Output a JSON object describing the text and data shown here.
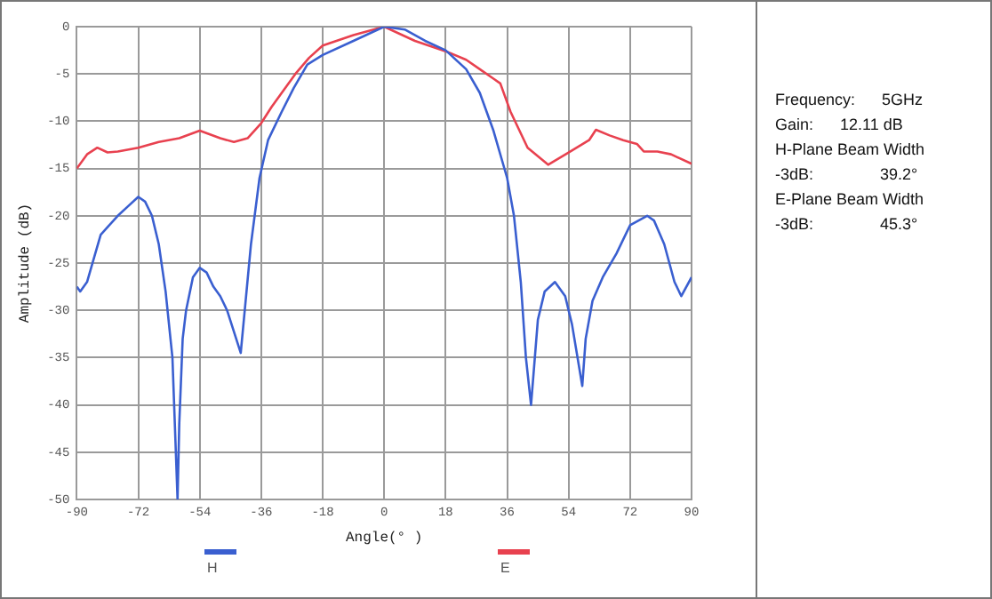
{
  "chart_data": {
    "type": "line",
    "xlabel": "Angle(° )",
    "ylabel": "Amplitude (dB)",
    "xlim": [
      -90,
      90
    ],
    "xticks": [
      -90,
      -72,
      -54,
      -36,
      -18,
      0,
      18,
      36,
      54,
      72,
      90
    ],
    "ylim": [
      -50,
      0
    ],
    "yticks": [
      -50,
      -45,
      -40,
      -35,
      -30,
      -25,
      -20,
      -15,
      -10,
      -5,
      0
    ],
    "grid": true,
    "legend": "bottom",
    "marker": "none",
    "line_style": "solid",
    "series": [
      {
        "name": "H",
        "color": "#3a5fd0",
        "x": [
          -90,
          -89,
          -87,
          -85,
          -83,
          -78,
          -75,
          -72,
          -70,
          -68,
          -66,
          -64,
          -62,
          -61,
          -60.5,
          -60,
          -59,
          -58,
          -56,
          -54,
          -52,
          -50,
          -48,
          -46,
          -42,
          -39,
          -36.5,
          -34,
          -30,
          -26.5,
          -22.5,
          -18,
          -9,
          0,
          6,
          12,
          18,
          24,
          28,
          32,
          36,
          38,
          40,
          41.5,
          43,
          45,
          47,
          50,
          53,
          55,
          58,
          59,
          61,
          64,
          68,
          72,
          77,
          79,
          82,
          85,
          87,
          90
        ],
        "values": [
          -27.5,
          -28,
          -27,
          -24.5,
          -22,
          -20,
          -19,
          -18,
          -18.5,
          -20,
          -23,
          -28,
          -35,
          -45,
          -50,
          -42,
          -33,
          -30,
          -26.5,
          -25.5,
          -26,
          -27.5,
          -28.5,
          -30,
          -34.5,
          -23,
          -16,
          -12,
          -9,
          -6.5,
          -4,
          -3,
          -1.5,
          0,
          -0.3,
          -1.5,
          -2.5,
          -4.5,
          -7,
          -11,
          -16,
          -20,
          -27,
          -35,
          -40,
          -31,
          -28,
          -27,
          -28.5,
          -31.5,
          -38,
          -33,
          -29,
          -26.5,
          -24,
          -21,
          -20,
          -20.5,
          -23,
          -27,
          -28.5,
          -26.5
        ]
      },
      {
        "name": "E",
        "color": "#e8414f",
        "x": [
          -90,
          -87,
          -84,
          -81,
          -78,
          -72,
          -66,
          -60,
          -54,
          -48,
          -44,
          -40,
          -36,
          -33,
          -30,
          -26,
          -22,
          -18,
          -9,
          0,
          9,
          18,
          24,
          28,
          32,
          34,
          37,
          42,
          48,
          54,
          60,
          62,
          66,
          70,
          74,
          76,
          80,
          84,
          90
        ],
        "values": [
          -15,
          -13.5,
          -12.8,
          -13.3,
          -13.2,
          -12.8,
          -12.2,
          -11.8,
          -11,
          -11.8,
          -12.2,
          -11.8,
          -10.2,
          -8.5,
          -7,
          -5,
          -3.3,
          -2,
          -0.9,
          0,
          -1.5,
          -2.6,
          -3.5,
          -4.5,
          -5.5,
          -6,
          -9,
          -12.8,
          -14.6,
          -13.3,
          -12,
          -10.9,
          -11.5,
          -12,
          -12.4,
          -13.2,
          -13.2,
          -13.5,
          -14.5
        ]
      }
    ],
    "annotations": [
      "Frequency:      5GHz",
      "Gain:      12.11 dB",
      "H-Plane Beam Width",
      "-3dB:               39.2°",
      "E-Plane Beam Width",
      "-3dB:               45.3°"
    ]
  }
}
